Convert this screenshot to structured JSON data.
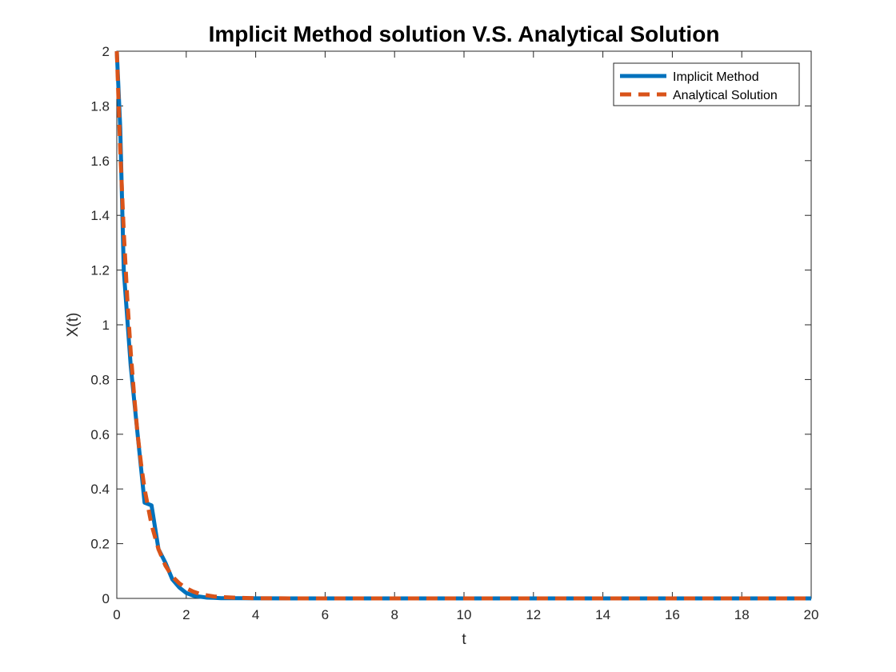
{
  "chart_data": {
    "type": "line",
    "title": "Implicit Method solution V.S. Analytical Solution",
    "xlabel": "t",
    "ylabel": "X(t)",
    "xlim": [
      0,
      20
    ],
    "ylim": [
      0,
      2
    ],
    "xticks": [
      0,
      2,
      4,
      6,
      8,
      10,
      12,
      14,
      16,
      18,
      20
    ],
    "yticks": [
      0,
      0.2,
      0.4,
      0.6,
      0.8,
      1,
      1.2,
      1.4,
      1.6,
      1.8,
      2
    ],
    "grid": false,
    "legend_position": "top-right",
    "series": [
      {
        "name": "Implicit Method",
        "color": "#0072BD",
        "style": "solid",
        "x": [
          0,
          0.1,
          0.2,
          0.4,
          0.6,
          0.8,
          1.0,
          1.2,
          1.4,
          1.6,
          1.8,
          2.0,
          2.2,
          2.4,
          2.6,
          2.8,
          3.0,
          3.5,
          4.0,
          5.0,
          6.0,
          8.0,
          10.0,
          12.0,
          14.0,
          16.0,
          18.0,
          20.0
        ],
        "y": [
          2.0,
          1.72,
          1.2,
          0.85,
          0.6,
          0.35,
          0.34,
          0.18,
          0.13,
          0.07,
          0.04,
          0.02,
          0.01,
          0.006,
          0.003,
          0.002,
          0.001,
          0.0005,
          0.0002,
          0,
          0,
          0,
          0,
          0,
          0,
          0,
          0,
          0
        ]
      },
      {
        "name": "Analytical Solution",
        "color": "#D95319",
        "style": "dashed",
        "x": [
          0,
          0.1,
          0.2,
          0.3,
          0.4,
          0.5,
          0.6,
          0.7,
          0.8,
          1.0,
          1.2,
          1.4,
          1.6,
          1.8,
          2.0,
          2.2,
          2.4,
          2.6,
          2.8,
          3.0,
          3.5,
          4.0,
          5.0,
          6.0,
          8.0,
          10.0,
          12.0,
          14.0,
          16.0,
          18.0,
          20.0
        ],
        "y": [
          2.0,
          1.64,
          1.34,
          1.1,
          0.9,
          0.74,
          0.6,
          0.49,
          0.4,
          0.27,
          0.18,
          0.12,
          0.08,
          0.055,
          0.037,
          0.025,
          0.016,
          0.011,
          0.007,
          0.005,
          0.002,
          0.0007,
          0.0001,
          0,
          0,
          0,
          0,
          0,
          0,
          0,
          0
        ]
      }
    ]
  }
}
